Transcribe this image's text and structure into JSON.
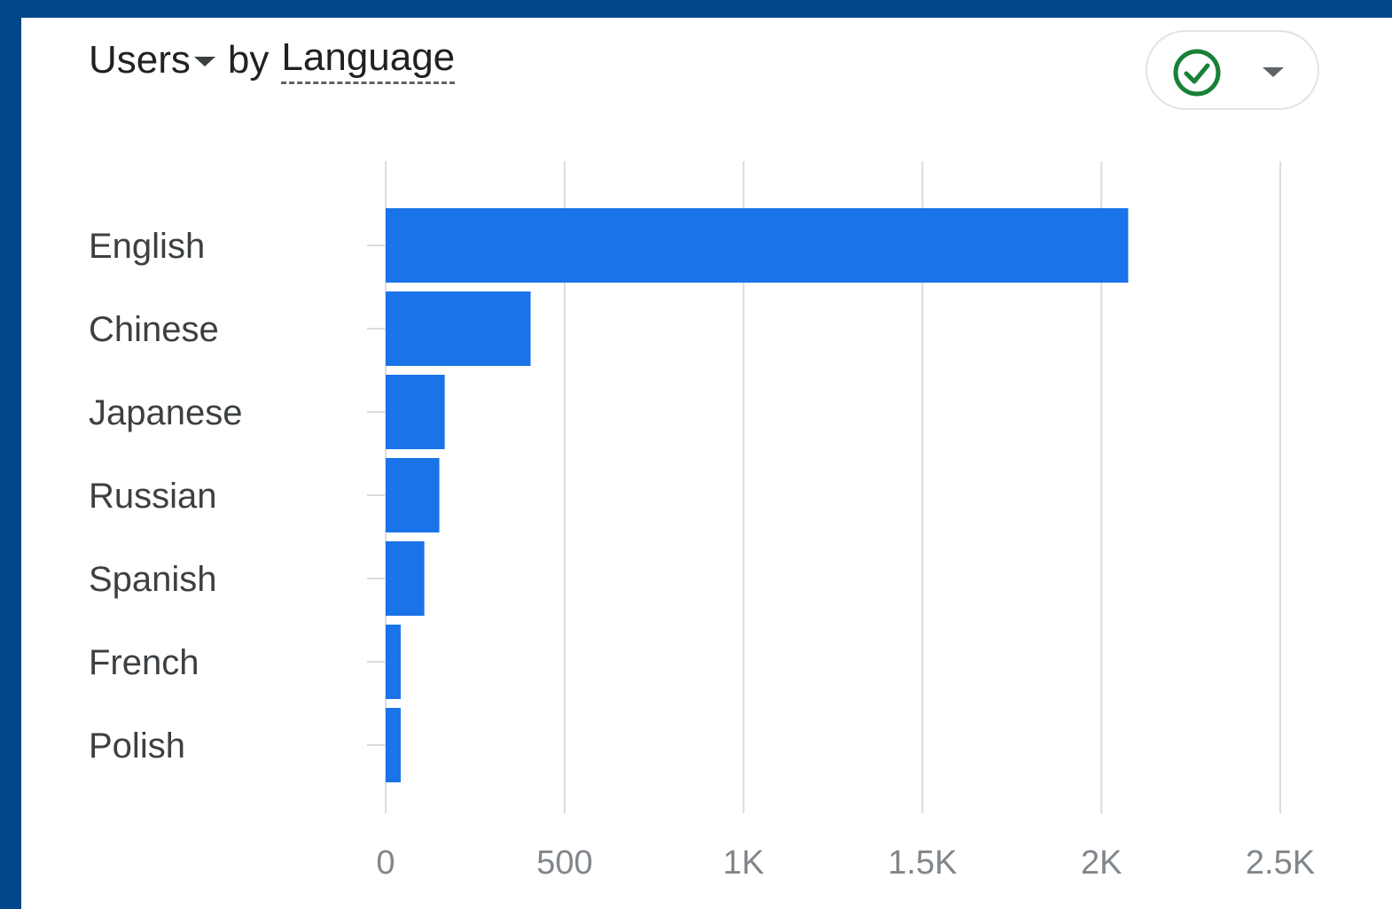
{
  "header": {
    "metric": "Users",
    "by": "by",
    "dimension": "Language"
  },
  "colors": {
    "bar": "#1a73e8",
    "grid": "#dadce0",
    "check": "#188038"
  },
  "icons": {
    "status": "check-circle-icon",
    "dropdown": "chevron-down-icon"
  },
  "chart_data": {
    "type": "bar",
    "orientation": "horizontal",
    "title": "Users by Language",
    "categories": [
      "English",
      "Chinese",
      "Japanese",
      "Russian",
      "Spanish",
      "French",
      "Polish"
    ],
    "values": [
      2075,
      405,
      165,
      150,
      108,
      42,
      42
    ],
    "xlim": [
      0,
      2500
    ],
    "x_ticks": [
      0,
      500,
      1000,
      1500,
      2000,
      2500
    ],
    "x_tick_labels": [
      "0",
      "500",
      "1K",
      "1.5K",
      "2K",
      "2.5K"
    ],
    "grid": true,
    "legend": "none"
  }
}
